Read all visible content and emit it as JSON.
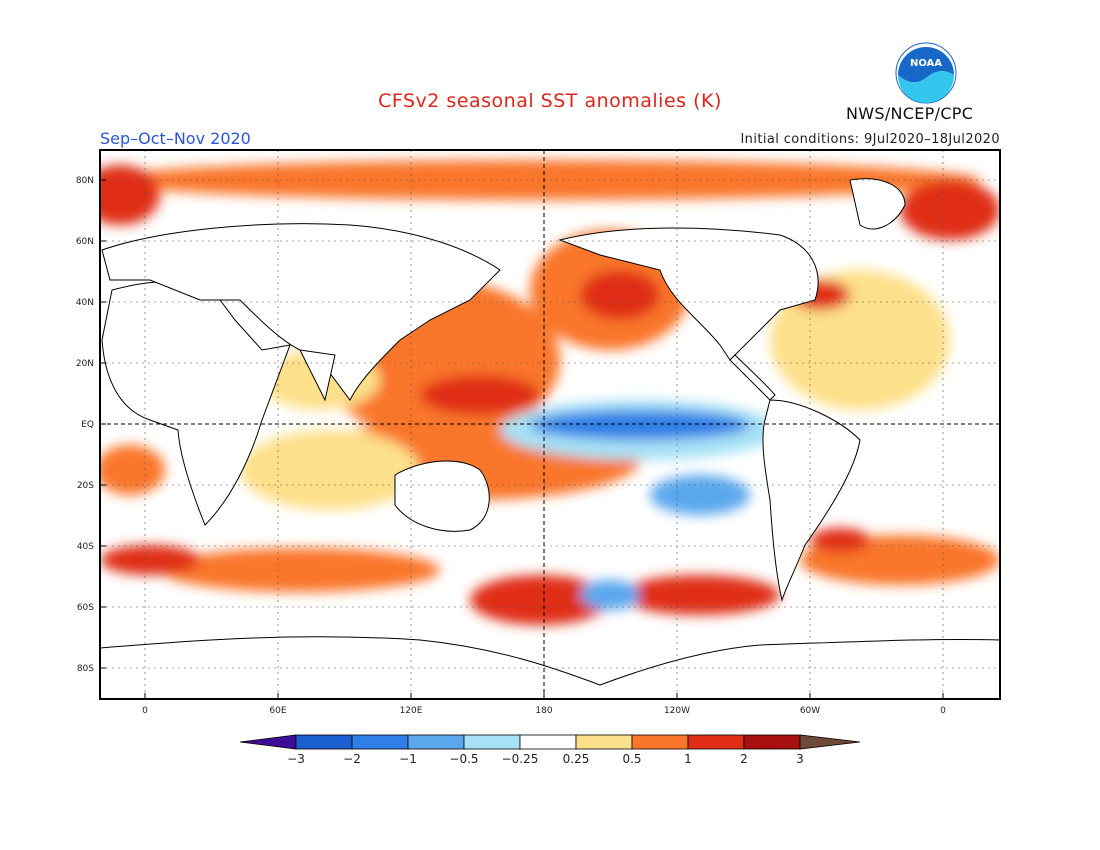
{
  "title": "CFSv2 seasonal SST anomalies (K)",
  "period": "Sep–Oct–Nov 2020",
  "initial_conditions": "Initial conditions: 9Jul2020–18Jul2020",
  "agency": "NWS/NCEP/CPC",
  "logo_text": "NOAA",
  "latitude_labels": [
    "80N",
    "60N",
    "40N",
    "20N",
    "EQ",
    "20S",
    "40S",
    "60S",
    "80S"
  ],
  "longitude_labels": [
    "0",
    "60E",
    "120E",
    "180",
    "120W",
    "60W",
    "0"
  ],
  "colorbar": {
    "tick_labels": [
      "−3",
      "−2",
      "−1",
      "−0.5",
      "−0.25",
      "0.25",
      "0.5",
      "1",
      "2",
      "3"
    ],
    "colors": [
      "#3c0d96",
      "#1a5fd0",
      "#2f7fe6",
      "#5aa7ee",
      "#a6e1f5",
      "#ffffff",
      "#fde08a",
      "#f9762a",
      "#e02d18",
      "#a80f10",
      "#6f4a38"
    ]
  },
  "colors": {
    "land_outline": "#000000",
    "title": "#e0241b",
    "period": "#2a56d8",
    "logo_blue": "#1768c9",
    "logo_cyan": "#34c6ec"
  },
  "chart_data": {
    "type": "heatmap",
    "title": "CFSv2 seasonal SST anomalies (K)",
    "units": "K",
    "levels": [
      -3,
      -2,
      -1,
      -0.5,
      -0.25,
      0.25,
      0.5,
      1,
      2,
      3
    ],
    "regions": [
      {
        "name": "",
        "anomaly_K": -1.2,
        "lon_range": [
          190,
          265
        ],
        "lat_range": [
          -6,
          4
        ]
      },
      {
        "name": "",
        "anomaly_K": -0.4,
        "lon_range": [
          180,
          275
        ],
        "lat_range": [
          -12,
          6
        ]
      },
      {
        "name": "",
        "anomaly_K": -0.6,
        "lon_range": [
          230,
          265
        ],
        "lat_range": [
          -32,
          -15
        ]
      },
      {
        "name": "",
        "anomaly_K": 1.5,
        "lon_range": [
          130,
          180
        ],
        "lat_range": [
          0,
          30
        ]
      },
      {
        "name": "",
        "anomaly_K": 0.8,
        "lon_range": [
          60,
          160
        ],
        "lat_range": [
          -22,
          -5
        ]
      },
      {
        "name": "",
        "anomaly_K": 1.2,
        "lon_range": [
          190,
          240
        ],
        "lat_range": [
          30,
          50
        ]
      },
      {
        "name": "",
        "anomaly_K": 1.4,
        "lon_range": [
          150,
          280
        ],
        "lat_range": [
          -62,
          -48
        ]
      },
      {
        "name": "",
        "anomaly_K": 1.2,
        "lon_range": [
          0,
          110
        ],
        "lat_range": [
          -55,
          -40
        ]
      },
      {
        "name": "",
        "anomaly_K": 1.2,
        "lon_range": [
          300,
          360
        ],
        "lat_range": [
          -50,
          -35
        ]
      },
      {
        "name": "",
        "anomaly_K": 1.0,
        "lon_range": [
          -30,
          360
        ],
        "lat_range": [
          60,
          82
        ]
      },
      {
        "name": "",
        "anomaly_K": 0.6,
        "lon_range": [
          280,
          350
        ],
        "lat_range": [
          10,
          50
        ]
      },
      {
        "name": "",
        "anomaly_K": 0.6,
        "lon_range": [
          -10,
          15
        ],
        "lat_range": [
          -25,
          -5
        ]
      }
    ]
  }
}
